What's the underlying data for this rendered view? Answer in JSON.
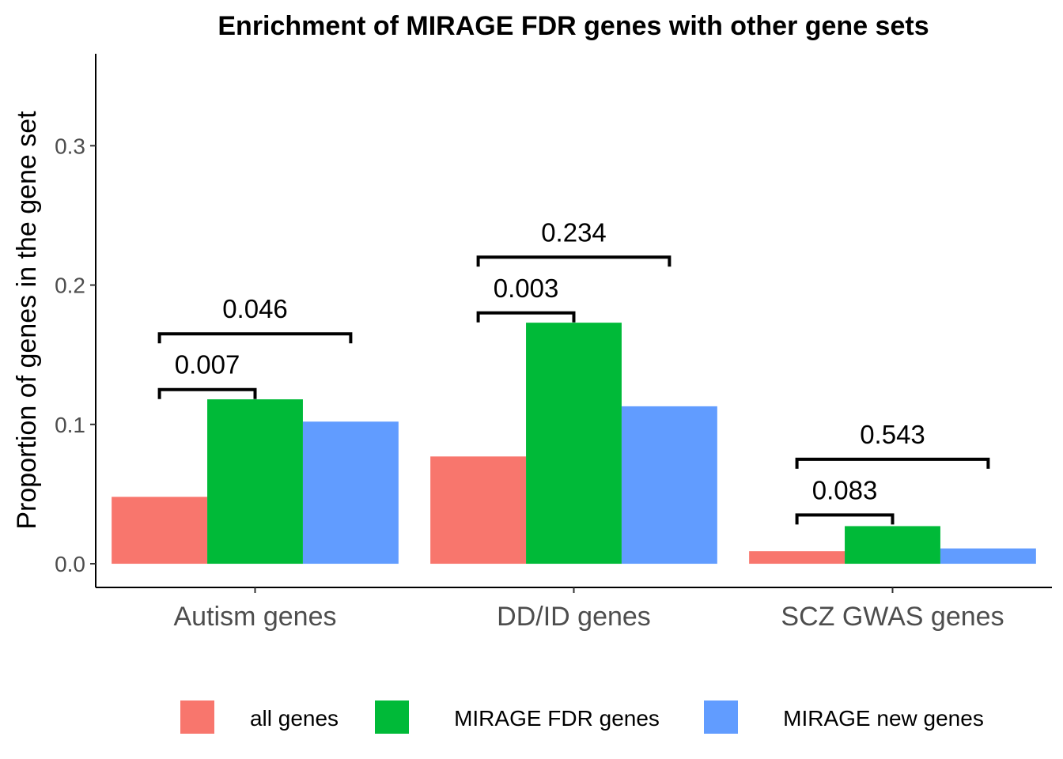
{
  "chart_data": {
    "type": "bar",
    "title": "Enrichment of MIRAGE FDR genes with other gene sets",
    "xlabel": "",
    "ylabel": "Proportion of genes in the gene set",
    "ylim": [
      -0.017,
      0.366
    ],
    "yticks": [
      0.0,
      0.1,
      0.2,
      0.3
    ],
    "ytick_labels": [
      "0.0",
      "0.1",
      "0.2",
      "0.3"
    ],
    "categories": [
      "Autism genes",
      "DD/ID genes",
      "SCZ GWAS genes"
    ],
    "series": [
      {
        "name": "all genes",
        "color": "#F8766D",
        "values": [
          0.048,
          0.077,
          0.009
        ]
      },
      {
        "name": "MIRAGE FDR genes",
        "color": "#00BA38",
        "values": [
          0.118,
          0.173,
          0.027
        ]
      },
      {
        "name": "MIRAGE new genes",
        "color": "#619CFF",
        "values": [
          0.102,
          0.113,
          0.011
        ]
      }
    ],
    "comparisons": [
      {
        "category": 0,
        "from": 0,
        "to": 1,
        "level": 0.125,
        "label": "0.007"
      },
      {
        "category": 0,
        "from": 0,
        "to": 2,
        "level": 0.165,
        "label": "0.046"
      },
      {
        "category": 1,
        "from": 0,
        "to": 1,
        "level": 0.18,
        "label": "0.003"
      },
      {
        "category": 1,
        "from": 0,
        "to": 2,
        "level": 0.22,
        "label": "0.234"
      },
      {
        "category": 2,
        "from": 0,
        "to": 1,
        "level": 0.035,
        "label": "0.083"
      },
      {
        "category": 2,
        "from": 0,
        "to": 2,
        "level": 0.075,
        "label": "0.543"
      }
    ],
    "grid": false,
    "legend_position": "bottom"
  }
}
